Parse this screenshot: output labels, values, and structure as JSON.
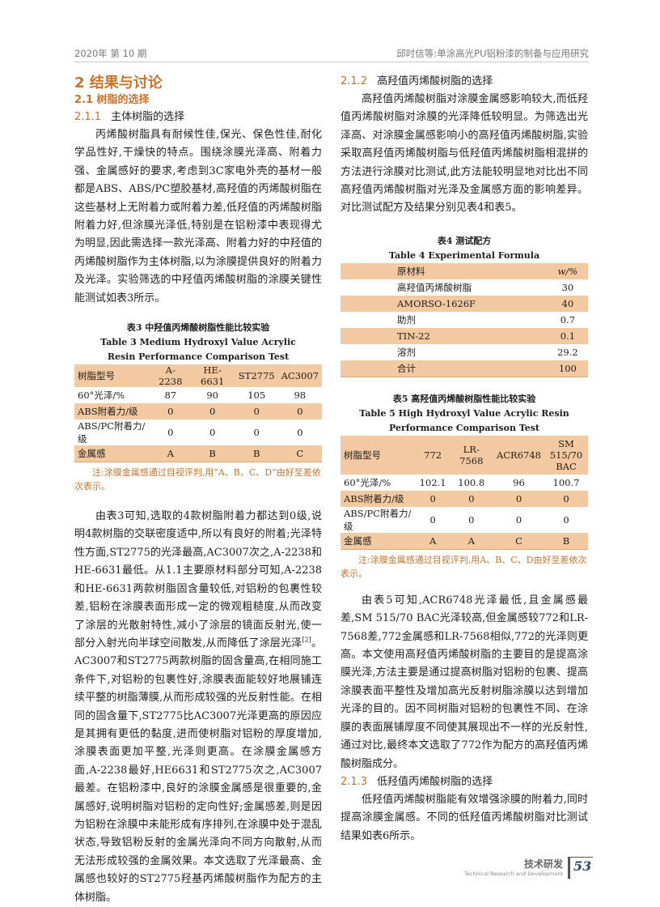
{
  "header": {
    "left": "2020年 第 10 期",
    "right": "邱时信等:单涂高光PU铝粉漆的制备与应用研究"
  },
  "left": {
    "section": "2  结果与讨论",
    "sub": "2.1   树脂的选择",
    "subsub_num": "2.1.1",
    "subsub_title": "主体树脂的选择",
    "para1": "丙烯酸树脂具有耐候性佳,保光、保色性佳,耐化学品性好,干燥快的特点。围绕涂膜光泽高、附着力强、金属感好的要求,考虑到3C家电外壳的基材一般都是ABS、ABS/PC塑胶基材,高羟值的丙烯酸树脂在这些基材上无附着力或附着力差,低羟值的丙烯酸树脂附着力好,但涂膜光泽低,特别是在铝粉漆中表现得尤为明显,因此需选择一款光泽高、附着力好的中羟值的丙烯酸树脂作为主体树脂,以为涂膜提供良好的附着力及光泽。实验筛选的中羟值丙烯酸树脂的涂膜关键性能测试如表3所示。",
    "table3": {
      "title_cn": "表3   中羟值丙烯酸树脂性能比较实验",
      "title_en": "Table 3   Medium Hydroxyl Value Acrylic Resin Performance Comparison Test",
      "headers": [
        "树脂型号",
        "A-2238",
        "HE-6631",
        "ST2775",
        "AC3007"
      ],
      "rows": [
        [
          "60°光泽/%",
          "87",
          "90",
          "105",
          "98"
        ],
        [
          "ABS附着力/级",
          "0",
          "0",
          "0",
          "0"
        ],
        [
          "ABS/PC附着力/级",
          "0",
          "0",
          "0",
          "0"
        ],
        [
          "金属感",
          "A",
          "B",
          "B",
          "C"
        ]
      ],
      "note": "注:涂膜金属感通过目视评判,用“A、B、C、D”由好至差依次表示。"
    },
    "para2a": "由表3可知,选取的4款树脂附着力都达到0级,说明4款树脂的交联密度适中,所以有良好的附着;光泽特性方面,ST2775的光泽最高,AC3007次之,A-2238和HE-6631最低。从1.1主要原材料部分可知,A-2238和HE-6631两款树脂固含量较低,对铝粉的包裹性较差,铝粉在涂膜表面形成一定的微观粗糙度,从而改变了涂层的光散射特性,减小了涂层的镜面反射光,使一部分入射光向半球空间散发,从而降低了涂层光泽",
    "para2_ref": "[2]",
    "para2b": "。AC3007和ST2775两款树脂的固含量高,在相同施工条件下,对铝粉的包裹性好,涂膜表面能较好地展铺连续平整的树脂薄膜,从而形成较强的光反射性能。在相同的固含量下,ST2775比AC3007光泽更高的原因应是其拥有更低的黏度,进而使树脂对铝粉的厚度增加,涂膜表面更加平整,光泽则更高。在涂膜金属感方面,A-2238最好,HE6631和ST2775次之,AC3007最差。在铝粉漆中,良好的涂膜金属感是很重要的,金属感好,说明树脂对铝粉的定向性好;金属感差,则是因为铝粉在涂膜中未能形成有序排列,在涂膜中处于混乱状态,导致铝粉反射的金属光泽向不同方向散射,从而无法形成较强的金属效果。本文选取了光泽最高、金属感也较好的ST2775羟基丙烯酸树脂作为配方的主体树脂。"
  },
  "right": {
    "s212_num": "2.1.2",
    "s212_title": "高羟值丙烯酸树脂的选择",
    "para1": "高羟值丙烯酸树脂对涂膜金属感影响较大,而低羟值丙烯酸树脂对涂膜的光泽降低较明显。为筛选出光泽高、对涂膜金属感影响小的高羟值丙烯酸树脂,实验采取高羟值丙烯酸树脂与低羟值丙烯酸树脂相混拼的方法进行涂膜对比测试,此方法能较明显地对比出不同高羟值丙烯酸树脂对光泽及金属感方面的影响差异。对比测试配方及结果分别见表4和表5。",
    "table4": {
      "title_cn": "表4   测试配方",
      "title_en": "Table 4   Experimental Formula",
      "headers": [
        "原材料",
        "w/%"
      ],
      "rows": [
        [
          "高羟值丙烯酸树脂",
          "30"
        ],
        [
          "AMORSO-1626F",
          "40"
        ],
        [
          "助剂",
          "0.7"
        ],
        [
          "TIN-22",
          "0.1"
        ],
        [
          "溶剂",
          "29.2"
        ],
        [
          "合计",
          "100"
        ]
      ]
    },
    "table5": {
      "title_cn": "表5   高羟值丙烯酸树脂性能比较实验",
      "title_en": "Table 5   High Hydroxyl Value Acrylic Resin Performance Comparison Test",
      "headers": [
        "树脂型号",
        "772",
        "LR-7568",
        "ACR6748",
        "SM 515/70 BAC"
      ],
      "rows": [
        [
          "60°光泽/%",
          "102.1",
          "100.8",
          "96",
          "100.7"
        ],
        [
          "ABS附着力/级",
          "0",
          "0",
          "0",
          "0"
        ],
        [
          "ABS/PC附着力/级",
          "0",
          "0",
          "0",
          "0"
        ],
        [
          "金属感",
          "A",
          "A",
          "C",
          "B"
        ]
      ],
      "note": "注:涂膜金属感通过目视评判,用A、B、C、D由好至差依次表示。"
    },
    "para2": "由表5可知,ACR6748光泽最低,且金属感最差,SM 515/70 BAC光泽较高,但金属感较772和LR-7568差,772金属感和LR-7568相似,772的光泽则更高。本文使用高羟值丙烯酸树脂的主要目的是提高涂膜光泽,方法主要是通过提高树脂对铝粉的包裹、提高涂膜表面平整性及增加高光反射树脂涂膜以达到增加光泽的目的。因不同树脂对铝粉的包裹性不同、在涂膜的表面展铺厚度不同使其展现出不一样的光反射性,通过对比,最终本文选取了772作为配方的高羟值丙烯酸树脂成分。",
    "s213_num": "2.1.3",
    "s213_title": "低羟值丙烯酸树脂的选择",
    "para3": "低羟值丙烯酸树脂能有效增强涂膜的附着力,同时提高涂膜金属感。不同的低羟值丙烯酸树脂对比测试结果如表6所示。"
  },
  "footer": {
    "section_cn": "技术研发",
    "section_en": "Technical Research and Development",
    "page": "53"
  },
  "colors": {
    "accent": "#c8742c",
    "table_shade": "#f2c9a0"
  }
}
